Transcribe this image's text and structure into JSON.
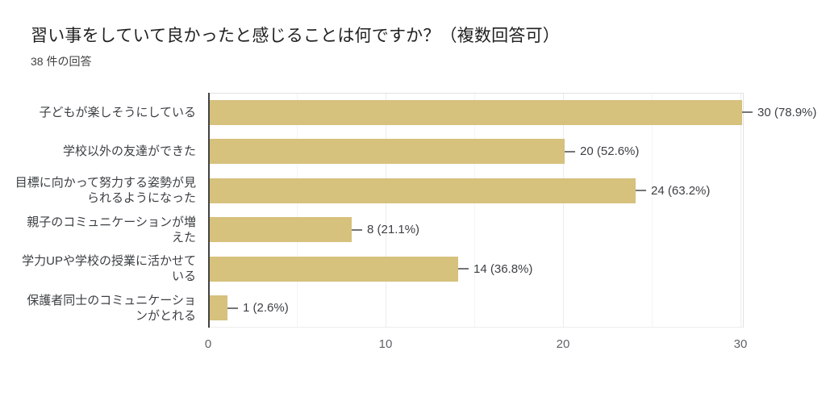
{
  "header": {
    "title": "習い事をしていて良かったと感じることは何ですか？（複数回答可）",
    "response_count": "38 件の回答"
  },
  "chart_data": {
    "type": "bar",
    "orientation": "horizontal",
    "title": "習い事をしていて良かったと感じることは何ですか？（複数回答可）",
    "subtitle": "38 件の回答",
    "total_responses": 38,
    "categories": [
      "子どもが楽しそうにしている",
      "学校以外の友達ができた",
      "目標に向かって努力する姿勢が見られるようになった",
      "親子のコミュニケーションが増えた",
      "学力UPや学校の授業に活かせている",
      "保護者同士のコミュニケーションがとれる"
    ],
    "categories_wrapped": [
      "子どもが楽しそうにしている",
      "学校以外の友達ができた",
      "目標に向かって努力する姿勢が見\nられるようになった",
      "親子のコミュニケーションが増\nえた",
      "学力UPや学校の授業に活かせて\nいる",
      "保護者同士のコミュニケーショ\nンがとれる"
    ],
    "values": [
      30,
      20,
      24,
      8,
      14,
      1
    ],
    "percentages": [
      "78.9%",
      "52.6%",
      "63.2%",
      "21.1%",
      "36.8%",
      "2.6%"
    ],
    "value_labels": [
      "30 (78.9%)",
      "20 (52.6%)",
      "24 (63.2%)",
      "8 (21.1%)",
      "14 (36.8%)",
      "1 (2.6%)"
    ],
    "xlabel": "",
    "ylabel": "",
    "xlim": [
      0,
      30
    ],
    "x_major_ticks": [
      0,
      10,
      20,
      30
    ],
    "x_minor_gridlines": [
      5,
      15,
      25
    ],
    "grid": "vertical",
    "legend": "none",
    "colors": {
      "bar": "#d6c17d",
      "axis_line": "#424242",
      "major_gridline": "#ececec",
      "minor_gridline": "#f4f4f4",
      "label_text": "#3c4043",
      "tick_text": "#5f6368",
      "title_text": "#212121"
    }
  }
}
